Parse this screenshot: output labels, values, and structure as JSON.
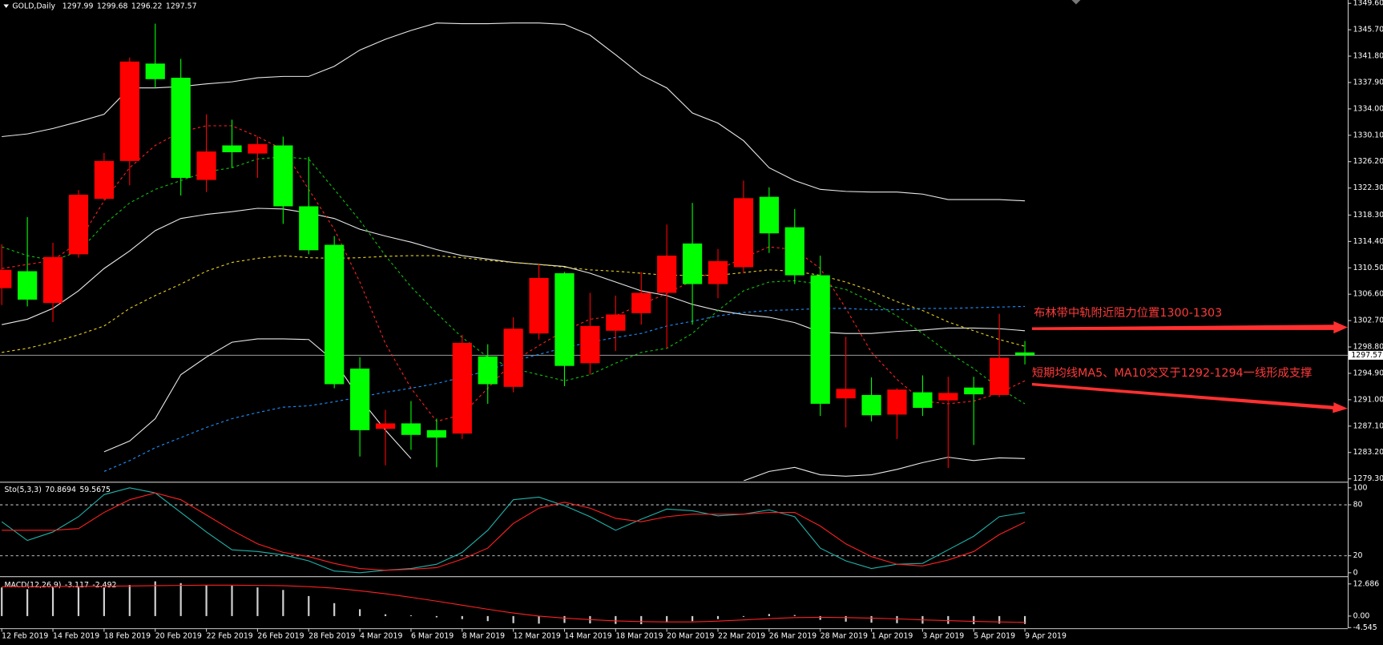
{
  "chart_data": [
    {
      "type": "candlestick",
      "symbol": "GOLD,Daily",
      "up_color": "#ff0000",
      "down_color": "#00ff00",
      "categories": [
        "12 Feb 2019",
        null,
        "14 Feb 2019",
        null,
        "18 Feb 2019",
        null,
        "20 Feb 2019",
        null,
        "22 Feb 2019",
        null,
        "26 Feb 2019",
        null,
        "28 Feb 2019",
        null,
        "4 Mar 2019",
        null,
        "6 Mar 2019",
        null,
        "8 Mar 2019",
        null,
        "12 Mar 2019",
        null,
        "14 Mar 2019",
        null,
        "18 Mar 2019",
        null,
        "20 Mar 2019",
        null,
        "22 Mar 2019",
        null,
        "26 Mar 2019",
        null,
        "28 Mar 2019",
        null,
        "1 Apr 2019",
        null,
        "3 Apr 2019",
        null,
        "5 Apr 2019",
        null,
        "9 Apr 2019"
      ],
      "open": [
        1307.5,
        1310.0,
        1305.3,
        1312.5,
        1320.7,
        1326.3,
        1340.7,
        1338.6,
        1323.5,
        1328.6,
        1327.4,
        1328.6,
        1319.6,
        1313.9,
        1295.6,
        1286.7,
        1287.5,
        1286.5,
        1286.0,
        1297.4,
        1292.9,
        1300.8,
        1309.7,
        1296.4,
        1301.2,
        1303.8,
        1306.8,
        1314.1,
        1308.1,
        1310.6,
        1321.0,
        1316.5,
        1309.4,
        1291.2,
        1291.7,
        1288.8,
        1292.1,
        1290.9,
        1292.8,
        1291.7,
        1297.99
      ],
      "high": [
        1314.0,
        1318.0,
        1314.2,
        1322.0,
        1327.5,
        1341.6,
        1346.6,
        1341.4,
        1333.2,
        1332.4,
        1329.9,
        1329.9,
        1326.9,
        1315.2,
        1297.3,
        1289.5,
        1290.8,
        1288.2,
        1300.6,
        1299.2,
        1303.2,
        1311.0,
        1309.9,
        1306.8,
        1306.4,
        1309.9,
        1316.9,
        1320.1,
        1313.3,
        1323.4,
        1322.4,
        1319.2,
        1312.3,
        1300.3,
        1294.3,
        1292.7,
        1294.6,
        1294.4,
        1294.4,
        1303.7,
        1299.68
      ],
      "low": [
        1305.0,
        1304.8,
        1302.5,
        1312.0,
        1320.5,
        1322.7,
        1337.1,
        1321.2,
        1321.7,
        1325.3,
        1323.8,
        1317.0,
        1312.5,
        1292.7,
        1282.6,
        1281.3,
        1283.6,
        1281.0,
        1285.2,
        1290.4,
        1292.1,
        1299.9,
        1293.0,
        1294.7,
        1298.2,
        1302.1,
        1298.6,
        1302.1,
        1306.0,
        1309.7,
        1312.7,
        1308.1,
        1288.6,
        1286.9,
        1287.8,
        1285.2,
        1288.6,
        1280.9,
        1284.3,
        1291.4,
        1296.22
      ],
      "close": [
        1310.2,
        1305.8,
        1312.1,
        1321.3,
        1326.3,
        1341.0,
        1338.4,
        1323.8,
        1327.7,
        1327.6,
        1328.8,
        1319.6,
        1313.1,
        1293.3,
        1286.5,
        1287.5,
        1285.8,
        1285.4,
        1299.4,
        1293.3,
        1301.5,
        1309.0,
        1296.0,
        1301.9,
        1303.6,
        1306.8,
        1312.3,
        1308.1,
        1311.5,
        1320.8,
        1315.6,
        1309.4,
        1290.4,
        1292.6,
        1288.7,
        1292.5,
        1289.8,
        1292.0,
        1291.8,
        1297.2,
        1297.57
      ],
      "series": [
        {
          "color": "#e8e8e8",
          "style": "solid",
          "values": [
            1329.9,
            1330.3,
            1331.1,
            1332.1,
            1333.2,
            1337.1,
            1337.1,
            1337.3,
            1337.7,
            1338.0,
            1338.6,
            1338.8,
            1338.8,
            1340.3,
            1342.7,
            1344.3,
            1345.6,
            1346.7,
            1346.6,
            1346.6,
            1346.7,
            1346.7,
            1346.5,
            1344.9,
            1342.0,
            1339.0,
            1337.1,
            1333.4,
            1331.9,
            1329.3,
            1325.3,
            1323.4,
            1322.1,
            1321.8,
            1321.7,
            1321.7,
            1321.4,
            1320.6,
            1320.6,
            1320.6,
            1320.4
          ]
        },
        {
          "color": "#e8e8e8",
          "style": "solid",
          "values": [
            1302.1,
            1302.9,
            1304.5,
            1307.1,
            1310.4,
            1313.0,
            1316.0,
            1317.8,
            1318.4,
            1318.8,
            1319.3,
            1319.2,
            1318.6,
            1317.8,
            1316.2,
            1315.2,
            1314.3,
            1313.2,
            1312.3,
            1311.8,
            1311.3,
            1311.0,
            1310.7,
            1309.7,
            1308.4,
            1307.1,
            1306.4,
            1305.1,
            1304.2,
            1303.6,
            1303.2,
            1302.4,
            1301.0,
            1300.8,
            1300.8,
            1301.1,
            1301.3,
            1301.6,
            1301.6,
            1301.5,
            1301.2
          ]
        },
        {
          "color": "#e8e8e8",
          "style": "solid",
          "values": [
            null,
            null,
            null,
            null,
            1283.3,
            1284.9,
            1288.2,
            1294.7,
            1297.3,
            1299.5,
            1300.0,
            1300.0,
            1299.9,
            1296.7,
            1291.2,
            1286.5,
            1282.3,
            null,
            null,
            null,
            null,
            null,
            null,
            null,
            null,
            null,
            null,
            null,
            null,
            1279.0,
            1280.4,
            1281.0,
            1279.9,
            1279.7,
            1279.9,
            1280.7,
            1281.7,
            1282.5,
            1282.0,
            1282.4,
            1282.3
          ]
        },
        {
          "color": "#ff2020",
          "style": "dashed",
          "values": [
            1310.4,
            1311.0,
            1311.6,
            1314.3,
            1320.4,
            1325.3,
            1328.6,
            1330.6,
            1331.5,
            1331.5,
            1329.9,
            1328.0,
            1322.1,
            1316.2,
            1308.4,
            1299.3,
            1292.7,
            1287.8,
            1288.8,
            1292.7,
            1296.7,
            1299.0,
            1301.2,
            1302.9,
            1303.4,
            1305.1,
            1306.7,
            1308.6,
            1310.2,
            1312.0,
            1313.6,
            1313.2,
            1310.4,
            1304.5,
            1298.0,
            1294.0,
            1290.8,
            1290.4,
            1290.8,
            1292.0,
            1293.8
          ]
        },
        {
          "color": "#10c010",
          "style": "dashed",
          "values": [
            1313.6,
            1312.3,
            1311.6,
            1312.9,
            1316.9,
            1320.1,
            1322.1,
            1323.4,
            1324.7,
            1325.3,
            1326.6,
            1326.9,
            1326.6,
            1322.1,
            1317.5,
            1312.3,
            1307.7,
            1303.8,
            1300.2,
            1297.3,
            1295.6,
            1294.7,
            1293.8,
            1294.7,
            1296.4,
            1298.0,
            1298.6,
            1300.8,
            1304.2,
            1307.1,
            1308.4,
            1308.6,
            1308.1,
            1307.3,
            1305.5,
            1303.4,
            1300.8,
            1298.0,
            1295.6,
            1292.7,
            1290.4
          ]
        },
        {
          "color": "#e8d020",
          "style": "dashed",
          "values": [
            1298.0,
            1298.6,
            1299.5,
            1300.6,
            1301.9,
            1304.5,
            1306.4,
            1308.1,
            1310.0,
            1311.3,
            1311.9,
            1312.3,
            1312.0,
            1311.9,
            1312.0,
            1312.2,
            1312.3,
            1312.3,
            1312.0,
            1311.6,
            1311.3,
            1311.0,
            1310.6,
            1310.2,
            1310.0,
            1309.7,
            1309.4,
            1309.4,
            1309.4,
            1309.8,
            1310.2,
            1310.0,
            1309.4,
            1308.4,
            1307.1,
            1305.5,
            1304.2,
            1302.5,
            1301.2,
            1299.9,
            1298.9
          ]
        },
        {
          "color": "#1e90ff",
          "style": "dashed",
          "values": [
            null,
            null,
            null,
            null,
            1280.4,
            1282.0,
            1283.9,
            1285.4,
            1286.9,
            1288.2,
            1289.1,
            1289.9,
            1290.1,
            1290.7,
            1291.4,
            1292.1,
            1292.7,
            1293.4,
            1294.3,
            1295.3,
            1296.7,
            1297.7,
            1298.7,
            1299.5,
            1300.2,
            1300.8,
            1301.9,
            1302.6,
            1303.4,
            1303.9,
            1304.2,
            1304.3,
            1304.5,
            1304.5,
            1304.3,
            1304.3,
            1304.5,
            1304.5,
            1304.6,
            1304.7,
            1304.8
          ]
        }
      ],
      "ylim": [
        1279.0,
        1350.1
      ],
      "yticks": [
        {
          "value": 1349.6,
          "label": "1349.60"
        },
        {
          "value": 1345.7,
          "label": "1345.70"
        },
        {
          "value": 1341.8,
          "label": "1341.80"
        },
        {
          "value": 1337.9,
          "label": "1337.90"
        },
        {
          "value": 1334,
          "label": "1334.00"
        },
        {
          "value": 1330.1,
          "label": "1330.10"
        },
        {
          "value": 1326.2,
          "label": "1326.20"
        },
        {
          "value": 1322.3,
          "label": "1322.30"
        },
        {
          "value": 1318.3,
          "label": "1318.30"
        },
        {
          "value": 1314.4,
          "label": "1314.40"
        },
        {
          "value": 1310.5,
          "label": "1310.50"
        },
        {
          "value": 1306.6,
          "label": "1306.60"
        },
        {
          "value": 1302.7,
          "label": "1302.70"
        },
        {
          "value": 1298.8,
          "label": "1298.80"
        },
        {
          "value": 1294.9,
          "label": "1294.90"
        },
        {
          "value": 1291,
          "label": "1291.00"
        },
        {
          "value": 1287.1,
          "label": "1287.10"
        },
        {
          "value": 1283.2,
          "label": "1283.20"
        },
        {
          "value": 1279.3,
          "label": "1279.30"
        }
      ],
      "annotations": [
        "布林带中轨附近阻力位置1300-1303",
        "短期均线MA5、MA10交叉于1292-1294一线形成支撑"
      ]
    },
    {
      "type": "line",
      "name": "Sto(5,3,3)",
      "series": [
        {
          "color": "#20b2aa",
          "values": [
            60,
            38,
            48,
            66,
            92,
            100,
            94,
            71,
            48,
            27,
            25,
            21,
            14,
            2,
            0,
            3,
            5,
            10,
            24,
            50,
            86,
            89,
            79,
            66,
            50,
            63,
            75,
            73,
            67,
            69,
            74,
            66,
            29,
            14,
            5,
            10,
            11,
            27,
            43,
            66,
            70.8694
          ]
        },
        {
          "color": "#ff2020",
          "values": [
            50,
            50,
            50,
            52,
            71,
            86,
            94,
            86,
            68,
            50,
            34,
            24,
            19,
            11,
            5,
            3,
            4,
            6,
            16,
            29,
            58,
            76,
            83,
            76,
            64,
            60,
            66,
            69,
            69,
            69,
            71,
            71,
            55,
            34,
            19,
            10,
            8,
            15,
            25,
            45,
            59.5675
          ]
        }
      ],
      "ylim": [
        -3,
        104
      ],
      "yticks": [
        100,
        80,
        20,
        0
      ]
    },
    {
      "type": "macd",
      "name": "MACD(12,26,9)",
      "series": [
        {
          "type": "bar",
          "color": "#d0d0d0",
          "values": [
            11.3,
            10.6,
            11.3,
            11.3,
            11.3,
            12.3,
            13.7,
            13.0,
            12.3,
            12.0,
            11.3,
            10.3,
            7.9,
            5.1,
            2.7,
            0.7,
            0.3,
            -0.5,
            -1.2,
            -2.0,
            -2.8,
            -3.0,
            -2.7,
            -2.9,
            -3.1,
            -3.2,
            -2.5,
            -2.0,
            -1.2,
            -0.3,
            0.8,
            0.4,
            -1.5,
            -2.2,
            -2.6,
            -2.8,
            -3.0,
            -3.1,
            -3.2,
            -3.0,
            -3.117
          ]
        },
        {
          "type": "line",
          "color": "#ff2020",
          "values": [
            11.6,
            11.6,
            11.7,
            11.7,
            11.8,
            11.9,
            12.0,
            12.1,
            12.2,
            12.2,
            12.1,
            12.0,
            11.6,
            11.0,
            10.0,
            8.8,
            7.4,
            5.9,
            4.3,
            2.7,
            1.2,
            0.0,
            -0.8,
            -1.4,
            -1.9,
            -2.2,
            -2.3,
            -2.3,
            -2.0,
            -1.5,
            -1.0,
            -0.6,
            -0.5,
            -0.6,
            -0.8,
            -1.1,
            -1.5,
            -1.8,
            -2.1,
            -2.3,
            -2.492
          ]
        }
      ],
      "ylim": [
        -4.8,
        14.7
      ],
      "yticks": [
        12.686,
        {
          "value": 0,
          "label": "0.00"
        },
        -4.545
      ]
    }
  ]
}
